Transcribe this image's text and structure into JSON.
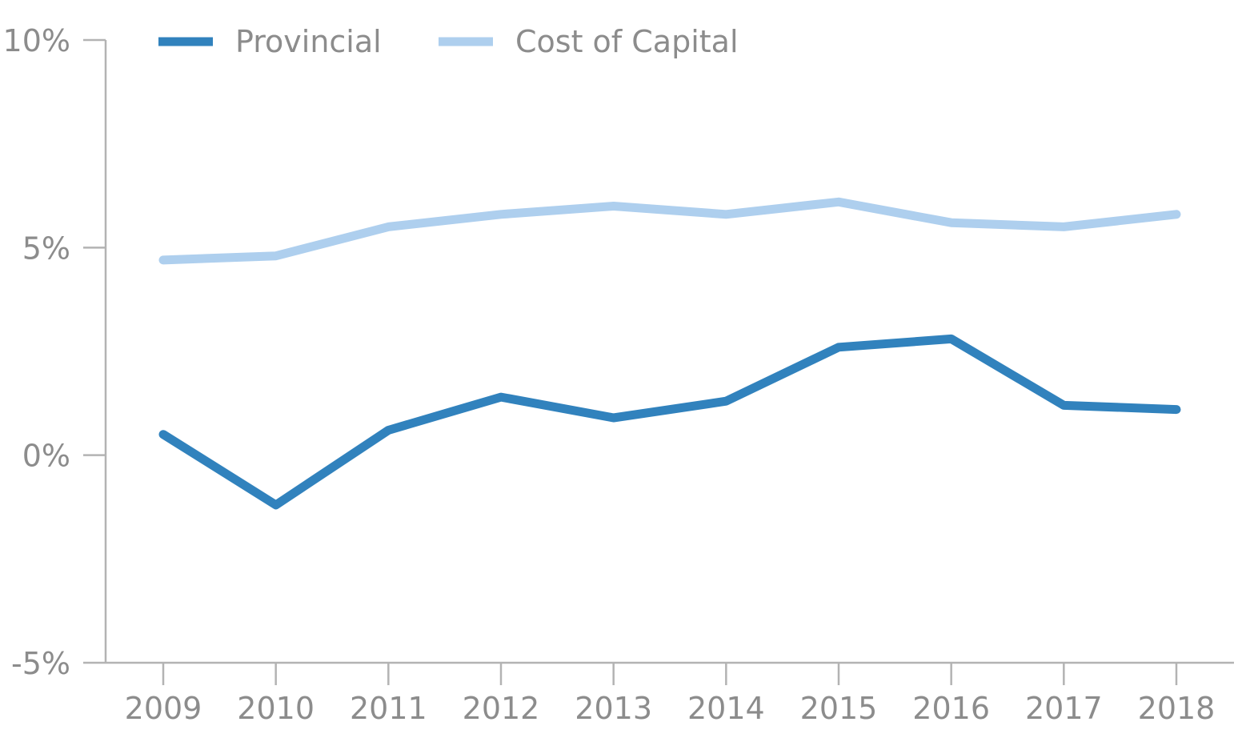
{
  "chart_data": {
    "type": "line",
    "title": "",
    "xlabel": "",
    "ylabel": "",
    "categories": [
      "2009",
      "2010",
      "2011",
      "2012",
      "2013",
      "2014",
      "2015",
      "2016",
      "2017",
      "2018"
    ],
    "ylim": [
      -5,
      10
    ],
    "yticks": [
      10,
      5,
      0,
      -5
    ],
    "ytick_labels": [
      "10%",
      "5%",
      "0%",
      "-5%"
    ],
    "grid": false,
    "legend_position": "top-left",
    "series": [
      {
        "name": "Provincial",
        "color": "#3182bd",
        "values": [
          0.5,
          -1.2,
          0.6,
          1.4,
          0.9,
          1.3,
          2.6,
          2.8,
          1.2,
          1.1
        ]
      },
      {
        "name": "Cost of Capital",
        "color": "#aecfee",
        "values": [
          4.7,
          4.8,
          5.5,
          5.8,
          6.0,
          5.8,
          6.1,
          5.6,
          5.5,
          5.8
        ]
      }
    ]
  }
}
